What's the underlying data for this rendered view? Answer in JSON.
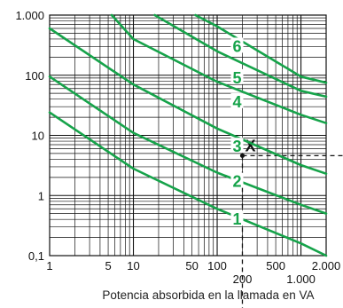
{
  "chart_data": {
    "type": "line",
    "title": "",
    "xlabel": "Potencia absorbida en la llamada en VA",
    "ylabel": "",
    "x_scale": "log",
    "y_scale": "log",
    "xlim": [
      1,
      2000
    ],
    "ylim": [
      0.1,
      1000
    ],
    "x_ticks": [
      {
        "value": 1,
        "label": "1"
      },
      {
        "value": 5,
        "label": "5"
      },
      {
        "value": 10,
        "label": "10"
      },
      {
        "value": 50,
        "label": "50"
      },
      {
        "value": 100,
        "label": "100"
      },
      {
        "value": 500,
        "label": "500"
      },
      {
        "value": 2000,
        "label": "2.000"
      }
    ],
    "x_ticks_secondary": [
      {
        "value": 200,
        "label": "200"
      },
      {
        "value": 1000,
        "label": "1.000"
      }
    ],
    "y_ticks": [
      {
        "value": 1000,
        "label": "1.000"
      },
      {
        "value": 100,
        "label": "100"
      },
      {
        "value": 10,
        "label": "10"
      },
      {
        "value": 1,
        "label": "1"
      },
      {
        "value": 0.1,
        "label": "0,1"
      }
    ],
    "grid": true,
    "series": [
      {
        "name": "1",
        "points": [
          [
            1,
            24
          ],
          [
            10,
            2.8
          ],
          [
            100,
            0.6
          ],
          [
            1000,
            0.16
          ],
          [
            2000,
            0.1
          ]
        ]
      },
      {
        "name": "2",
        "points": [
          [
            1,
            95
          ],
          [
            10,
            11
          ],
          [
            100,
            2.4
          ],
          [
            1000,
            0.7
          ],
          [
            2000,
            0.5
          ]
        ]
      },
      {
        "name": "3",
        "points": [
          [
            1,
            600
          ],
          [
            10,
            70
          ],
          [
            100,
            13
          ],
          [
            1000,
            3.2
          ],
          [
            2000,
            2.3
          ]
        ]
      },
      {
        "name": "4",
        "points": [
          [
            5.5,
            1000
          ],
          [
            10,
            400
          ],
          [
            100,
            78
          ],
          [
            1000,
            22
          ],
          [
            2000,
            16
          ]
        ]
      },
      {
        "name": "5",
        "points": [
          [
            18,
            1000
          ],
          [
            100,
            250
          ],
          [
            1000,
            55
          ],
          [
            2000,
            44
          ]
        ]
      },
      {
        "name": "6",
        "points": [
          [
            55,
            1000
          ],
          [
            100,
            650
          ],
          [
            1000,
            95
          ],
          [
            2000,
            75
          ]
        ]
      }
    ],
    "curve_labels": [
      {
        "text": "1",
        "x": 200,
        "y": 0.4
      },
      {
        "text": "2",
        "x": 200,
        "y": 1.7
      },
      {
        "text": "3",
        "x": 200,
        "y": 6.5
      },
      {
        "text": "4",
        "x": 200,
        "y": 36
      },
      {
        "text": "5",
        "x": 200,
        "y": 90
      },
      {
        "text": "6",
        "x": 200,
        "y": 300
      }
    ],
    "marker": {
      "text": "X",
      "x": 200,
      "y": 4.6
    },
    "guide_lines": {
      "x": 200,
      "y": 4.6
    }
  }
}
